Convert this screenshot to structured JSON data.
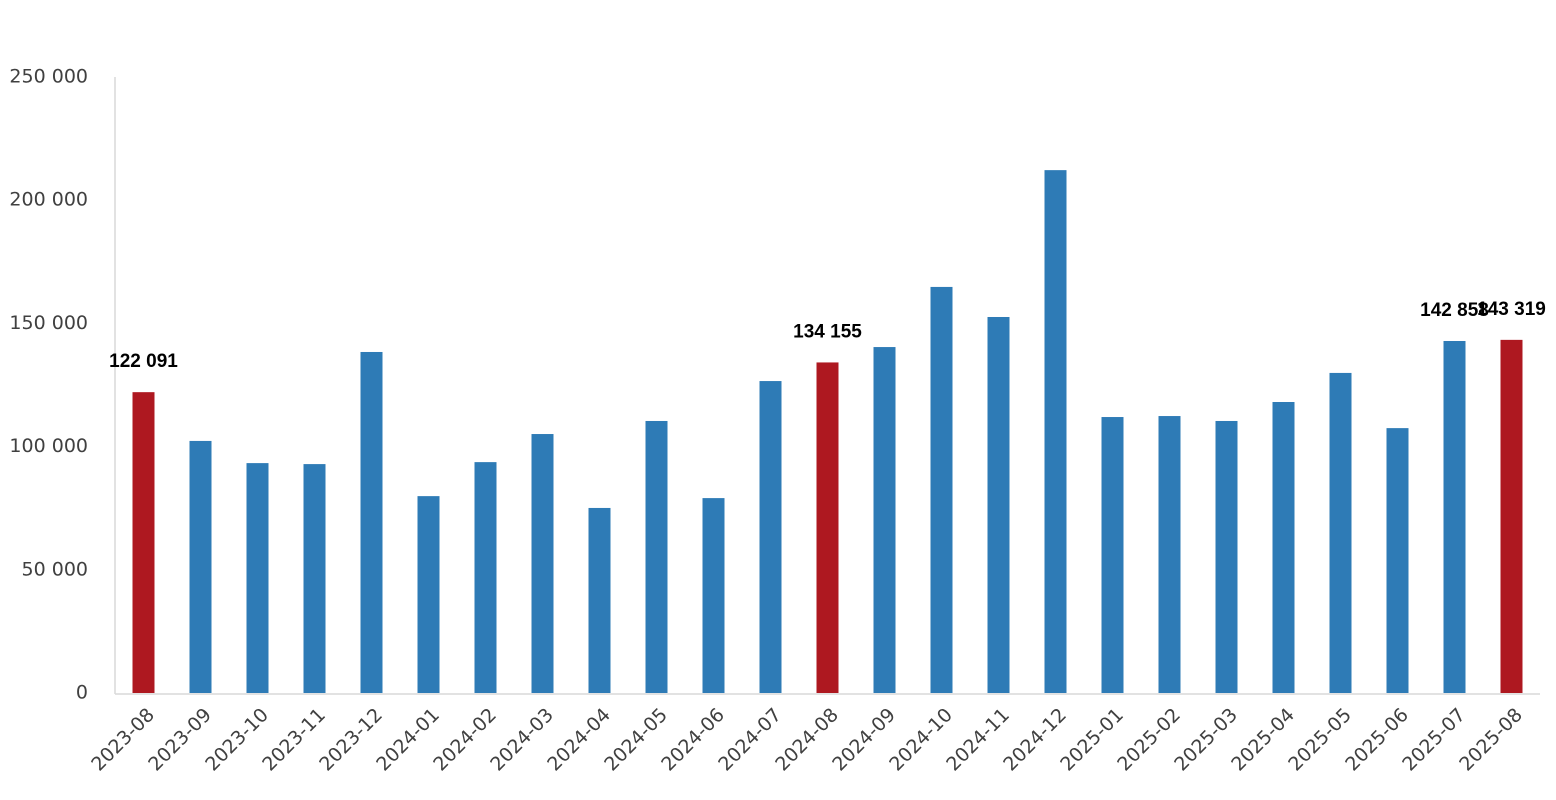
{
  "chart_data": {
    "type": "bar",
    "categories": [
      "2023-08",
      "2023-09",
      "2023-10",
      "2023-11",
      "2023-12",
      "2024-01",
      "2024-02",
      "2024-03",
      "2024-04",
      "2024-05",
      "2024-06",
      "2024-07",
      "2024-08",
      "2024-09",
      "2024-10",
      "2024-11",
      "2024-12",
      "2025-01",
      "2025-02",
      "2025-03",
      "2025-04",
      "2025-05",
      "2025-06",
      "2025-07",
      "2025-08"
    ],
    "values": [
      122091,
      102300,
      93300,
      92900,
      138400,
      79900,
      93700,
      105100,
      75100,
      110400,
      79100,
      126600,
      134155,
      140400,
      164800,
      152600,
      212200,
      112000,
      112400,
      110400,
      118100,
      129900,
      107500,
      142858,
      143319
    ],
    "value_labels": [
      "122 091",
      null,
      null,
      null,
      null,
      null,
      null,
      null,
      null,
      null,
      null,
      null,
      "134 155",
      null,
      null,
      null,
      null,
      null,
      null,
      null,
      null,
      null,
      null,
      "142 858",
      "143 319"
    ],
    "colors": [
      "#ae1820",
      "#2e7bb6",
      "#2e7bb6",
      "#2e7bb6",
      "#2e7bb6",
      "#2e7bb6",
      "#2e7bb6",
      "#2e7bb6",
      "#2e7bb6",
      "#2e7bb6",
      "#2e7bb6",
      "#2e7bb6",
      "#ae1820",
      "#2e7bb6",
      "#2e7bb6",
      "#2e7bb6",
      "#2e7bb6",
      "#2e7bb6",
      "#2e7bb6",
      "#2e7bb6",
      "#2e7bb6",
      "#2e7bb6",
      "#2e7bb6",
      "#2e7bb6",
      "#ae1820"
    ],
    "ylim": [
      0,
      250000
    ],
    "yticks": [
      0,
      {
        "value": 50000,
        "label": "50 000"
      },
      {
        "value": 100000,
        "label": "100 000"
      },
      {
        "value": 150000,
        "label": "150 000"
      },
      {
        "value": 200000,
        "label": "200 000"
      },
      {
        "value": 250000,
        "label": "250 000"
      }
    ],
    "grid": false
  }
}
